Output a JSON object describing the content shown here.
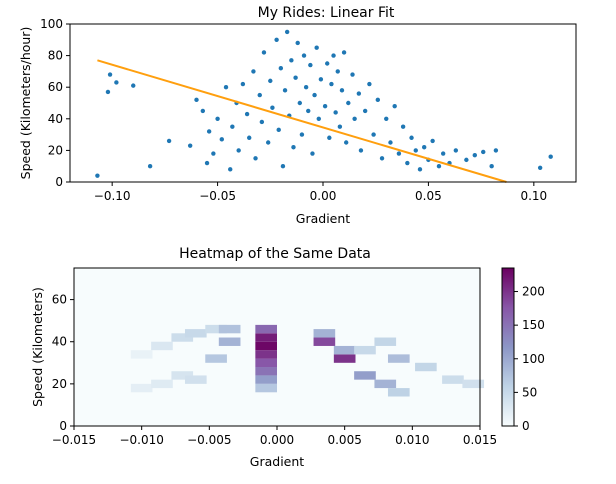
{
  "chart_data": [
    {
      "type": "scatter",
      "title": "My Rides: Linear Fit",
      "xlabel": "Gradient",
      "ylabel": "Speed (Kilometers/hour)",
      "xlim": [
        -0.12,
        0.12
      ],
      "ylim": [
        0,
        100
      ],
      "x_ticks": [
        -0.1,
        -0.05,
        0.0,
        0.05,
        0.1
      ],
      "x_tick_labels": [
        "−0.10",
        "−0.05",
        "0.00",
        "0.05",
        "0.10"
      ],
      "y_ticks": [
        0,
        20,
        40,
        60,
        80,
        100
      ],
      "y_tick_labels": [
        "0",
        "20",
        "40",
        "60",
        "80",
        "100"
      ],
      "grid": false,
      "series": [
        {
          "type": "scatter",
          "color": "#1f77b4",
          "points": [
            [
              -0.107,
              4
            ],
            [
              -0.101,
              68
            ],
            [
              -0.102,
              57
            ],
            [
              -0.098,
              63
            ],
            [
              -0.09,
              61
            ],
            [
              -0.082,
              10
            ],
            [
              -0.073,
              26
            ],
            [
              -0.063,
              23
            ],
            [
              -0.06,
              52
            ],
            [
              -0.057,
              45
            ],
            [
              -0.055,
              12
            ],
            [
              -0.054,
              32
            ],
            [
              -0.052,
              18
            ],
            [
              -0.05,
              40
            ],
            [
              -0.048,
              27
            ],
            [
              -0.046,
              60
            ],
            [
              -0.044,
              8
            ],
            [
              -0.043,
              35
            ],
            [
              -0.041,
              50
            ],
            [
              -0.04,
              20
            ],
            [
              -0.038,
              62
            ],
            [
              -0.036,
              43
            ],
            [
              -0.035,
              28
            ],
            [
              -0.033,
              70
            ],
            [
              -0.032,
              15
            ],
            [
              -0.03,
              55
            ],
            [
              -0.029,
              38
            ],
            [
              -0.028,
              82
            ],
            [
              -0.026,
              25
            ],
            [
              -0.025,
              64
            ],
            [
              -0.024,
              47
            ],
            [
              -0.022,
              90
            ],
            [
              -0.021,
              33
            ],
            [
              -0.02,
              72
            ],
            [
              -0.019,
              10
            ],
            [
              -0.018,
              58
            ],
            [
              -0.017,
              95
            ],
            [
              -0.016,
              42
            ],
            [
              -0.015,
              77
            ],
            [
              -0.014,
              22
            ],
            [
              -0.013,
              66
            ],
            [
              -0.012,
              88
            ],
            [
              -0.011,
              50
            ],
            [
              -0.01,
              30
            ],
            [
              -0.009,
              80
            ],
            [
              -0.008,
              60
            ],
            [
              -0.007,
              45
            ],
            [
              -0.006,
              74
            ],
            [
              -0.005,
              18
            ],
            [
              -0.004,
              55
            ],
            [
              -0.003,
              85
            ],
            [
              -0.002,
              40
            ],
            [
              -0.001,
              65
            ],
            [
              0.001,
              48
            ],
            [
              0.002,
              75
            ],
            [
              0.003,
              28
            ],
            [
              0.004,
              62
            ],
            [
              0.005,
              80
            ],
            [
              0.006,
              44
            ],
            [
              0.007,
              70
            ],
            [
              0.008,
              35
            ],
            [
              0.009,
              58
            ],
            [
              0.01,
              82
            ],
            [
              0.011,
              25
            ],
            [
              0.012,
              50
            ],
            [
              0.014,
              68
            ],
            [
              0.015,
              40
            ],
            [
              0.017,
              56
            ],
            [
              0.018,
              20
            ],
            [
              0.02,
              45
            ],
            [
              0.022,
              62
            ],
            [
              0.024,
              30
            ],
            [
              0.026,
              52
            ],
            [
              0.028,
              15
            ],
            [
              0.03,
              40
            ],
            [
              0.032,
              25
            ],
            [
              0.034,
              48
            ],
            [
              0.036,
              18
            ],
            [
              0.038,
              35
            ],
            [
              0.04,
              12
            ],
            [
              0.042,
              28
            ],
            [
              0.044,
              20
            ],
            [
              0.046,
              8
            ],
            [
              0.048,
              22
            ],
            [
              0.05,
              14
            ],
            [
              0.052,
              26
            ],
            [
              0.055,
              10
            ],
            [
              0.057,
              18
            ],
            [
              0.06,
              12
            ],
            [
              0.063,
              20
            ],
            [
              0.068,
              14
            ],
            [
              0.072,
              17
            ],
            [
              0.076,
              19
            ],
            [
              0.08,
              10
            ],
            [
              0.082,
              20
            ],
            [
              0.103,
              9
            ],
            [
              0.108,
              16
            ]
          ]
        },
        {
          "type": "line",
          "color": "#ff9f0e",
          "points": [
            [
              -0.107,
              77
            ],
            [
              0.087,
              0
            ]
          ]
        }
      ]
    },
    {
      "type": "heatmap",
      "title": "Heatmap of the Same Data",
      "xlabel": "Gradient",
      "ylabel": "Speed (Kilometers)",
      "xlim": [
        -0.015,
        0.015
      ],
      "ylim": [
        0,
        75
      ],
      "x_ticks": [
        -0.015,
        -0.01,
        -0.005,
        0.0,
        0.005,
        0.01,
        0.015
      ],
      "x_tick_labels": [
        "−0.015",
        "−0.010",
        "−0.005",
        "0.000",
        "0.005",
        "0.010",
        "0.015"
      ],
      "y_ticks": [
        0,
        20,
        40,
        60
      ],
      "y_tick_labels": [
        "0",
        "20",
        "40",
        "60"
      ],
      "colorbar": {
        "range": [
          0,
          235
        ],
        "ticks": [
          0,
          50,
          100,
          150,
          200
        ],
        "tick_labels": [
          "0",
          "50",
          "100",
          "150",
          "200"
        ],
        "colors": [
          "#f7fcfd",
          "#bfd3e6",
          "#8c96c6",
          "#8856a7",
          "#6a0060"
        ]
      },
      "cells": [
        {
          "x": -0.01,
          "y": 18,
          "v": 20
        },
        {
          "x": -0.01,
          "y": 34,
          "v": 15
        },
        {
          "x": -0.0085,
          "y": 20,
          "v": 25
        },
        {
          "x": -0.0085,
          "y": 38,
          "v": 30
        },
        {
          "x": -0.007,
          "y": 24,
          "v": 35
        },
        {
          "x": -0.007,
          "y": 42,
          "v": 45
        },
        {
          "x": -0.006,
          "y": 22,
          "v": 40
        },
        {
          "x": -0.006,
          "y": 44,
          "v": 50
        },
        {
          "x": -0.0045,
          "y": 32,
          "v": 70
        },
        {
          "x": -0.0045,
          "y": 46,
          "v": 45
        },
        {
          "x": -0.0035,
          "y": 40,
          "v": 90
        },
        {
          "x": -0.0035,
          "y": 46,
          "v": 75
        },
        {
          "x": -0.0008,
          "y": 26,
          "v": 150
        },
        {
          "x": -0.0008,
          "y": 30,
          "v": 175
        },
        {
          "x": -0.0008,
          "y": 34,
          "v": 200
        },
        {
          "x": -0.0008,
          "y": 38,
          "v": 230
        },
        {
          "x": -0.0008,
          "y": 42,
          "v": 215
        },
        {
          "x": -0.0008,
          "y": 46,
          "v": 160
        },
        {
          "x": -0.0008,
          "y": 22,
          "v": 110
        },
        {
          "x": -0.0008,
          "y": 18,
          "v": 70
        },
        {
          "x": 0.0035,
          "y": 40,
          "v": 185
        },
        {
          "x": 0.0035,
          "y": 44,
          "v": 90
        },
        {
          "x": 0.005,
          "y": 32,
          "v": 200
        },
        {
          "x": 0.005,
          "y": 36,
          "v": 90
        },
        {
          "x": 0.0065,
          "y": 24,
          "v": 110
        },
        {
          "x": 0.0065,
          "y": 36,
          "v": 50
        },
        {
          "x": 0.008,
          "y": 20,
          "v": 90
        },
        {
          "x": 0.008,
          "y": 40,
          "v": 55
        },
        {
          "x": 0.009,
          "y": 16,
          "v": 60
        },
        {
          "x": 0.009,
          "y": 32,
          "v": 80
        },
        {
          "x": 0.011,
          "y": 28,
          "v": 55
        },
        {
          "x": 0.013,
          "y": 22,
          "v": 45
        },
        {
          "x": 0.0145,
          "y": 20,
          "v": 40
        }
      ]
    }
  ]
}
